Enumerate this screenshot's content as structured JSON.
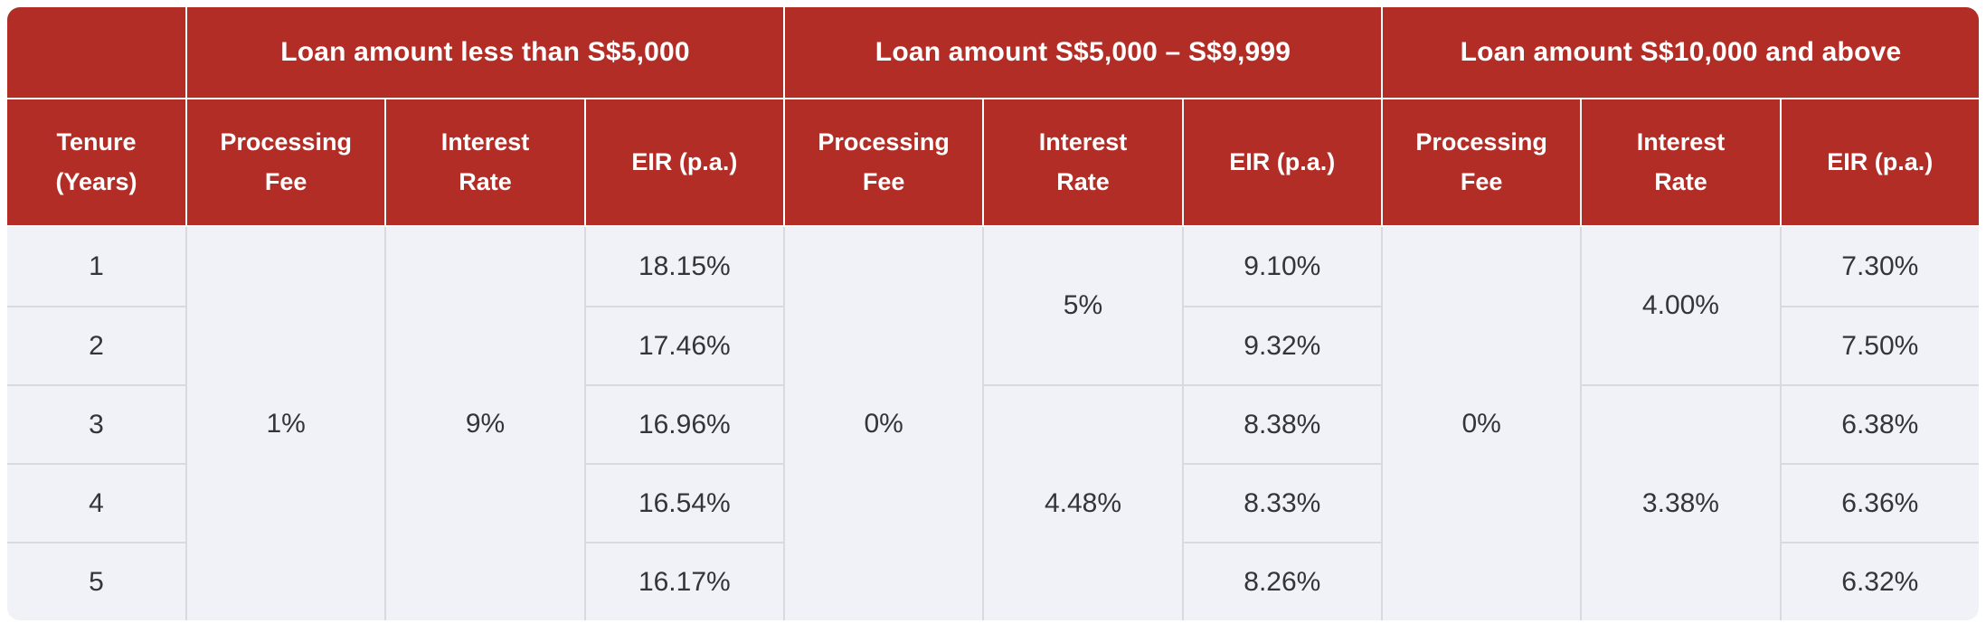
{
  "table": {
    "corner_label": "",
    "columns": {
      "tenure": {
        "line1": "Tenure",
        "line2": "(Years)"
      },
      "processing": {
        "line1": "Processing",
        "line2": "Fee"
      },
      "interest": {
        "line1": "Interest",
        "line2": "Rate"
      },
      "eir": "EIR (p.a.)"
    },
    "tenure_years": [
      "1",
      "2",
      "3",
      "4",
      "5"
    ],
    "groups": [
      {
        "title": "Loan amount less than S$5,000",
        "processing_fee": "1%",
        "interest_rates": [
          {
            "value": "9%",
            "rows": 5
          }
        ],
        "eir": [
          "18.15%",
          "17.46%",
          "16.96%",
          "16.54%",
          "16.17%"
        ]
      },
      {
        "title": "Loan amount S$5,000 – S$9,999",
        "processing_fee": "0%",
        "interest_rates": [
          {
            "value": "5%",
            "rows": 2
          },
          {
            "value": "4.48%",
            "rows": 3
          }
        ],
        "eir": [
          "9.10%",
          "9.32%",
          "8.38%",
          "8.33%",
          "8.26%"
        ]
      },
      {
        "title": "Loan amount S$10,000 and above",
        "processing_fee": "0%",
        "interest_rates": [
          {
            "value": "4.00%",
            "rows": 2
          },
          {
            "value": "3.38%",
            "rows": 3
          }
        ],
        "eir": [
          "7.30%",
          "7.50%",
          "6.38%",
          "6.36%",
          "6.32%"
        ]
      }
    ]
  },
  "colors": {
    "header_bg": "#B22D26",
    "header_text": "#FFFFFF",
    "header_border": "#FFFFFF",
    "body_bg": "#F1F2F7",
    "body_text": "#34353A",
    "body_border": "#D9DAE0",
    "page_bg": "#FFFFFF"
  }
}
